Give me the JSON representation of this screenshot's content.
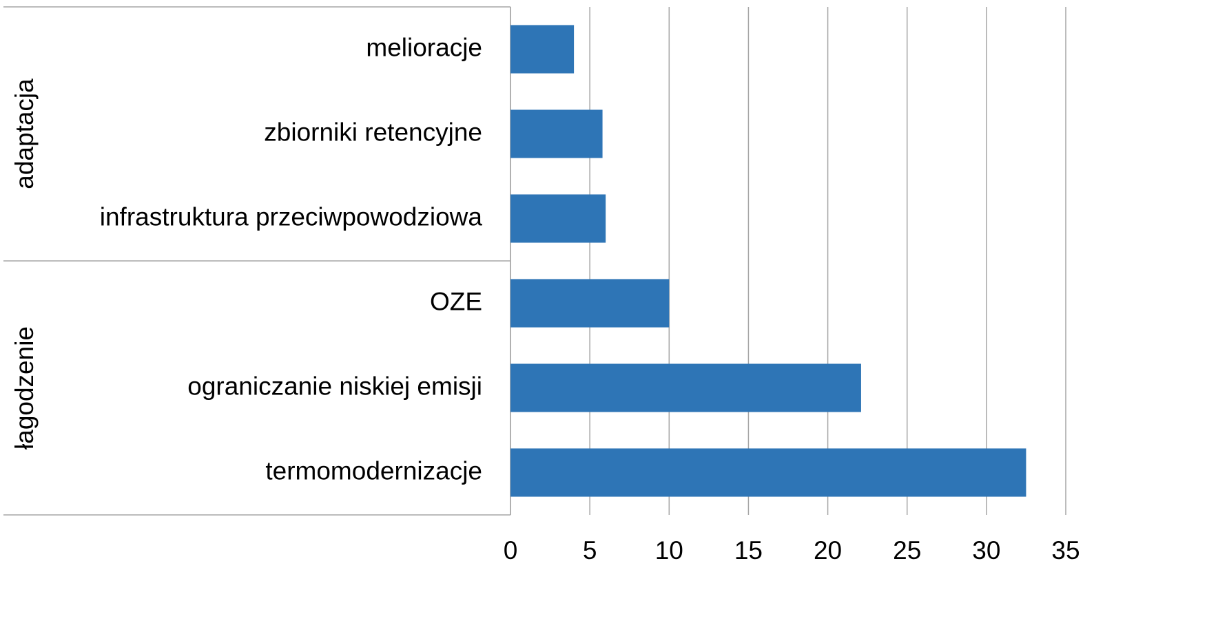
{
  "chart_data": {
    "type": "bar",
    "orientation": "horizontal",
    "color": "#2e75b6",
    "groups": [
      {
        "name": "adaptacja",
        "categories": [
          "melioracje",
          "zbiorniki retencyjne",
          "infrastruktura przeciwpowodziowa"
        ],
        "values": [
          4,
          5.8,
          6
        ]
      },
      {
        "name": "łagodzenie",
        "categories": [
          "OZE",
          "ograniczanie niskiej emisji",
          "termomodernizacje"
        ],
        "values": [
          10,
          22.1,
          32.5
        ]
      }
    ],
    "xlim": [
      0,
      35
    ],
    "xticks": [
      0,
      5,
      10,
      15,
      20,
      25,
      30,
      35
    ],
    "grid": true
  }
}
